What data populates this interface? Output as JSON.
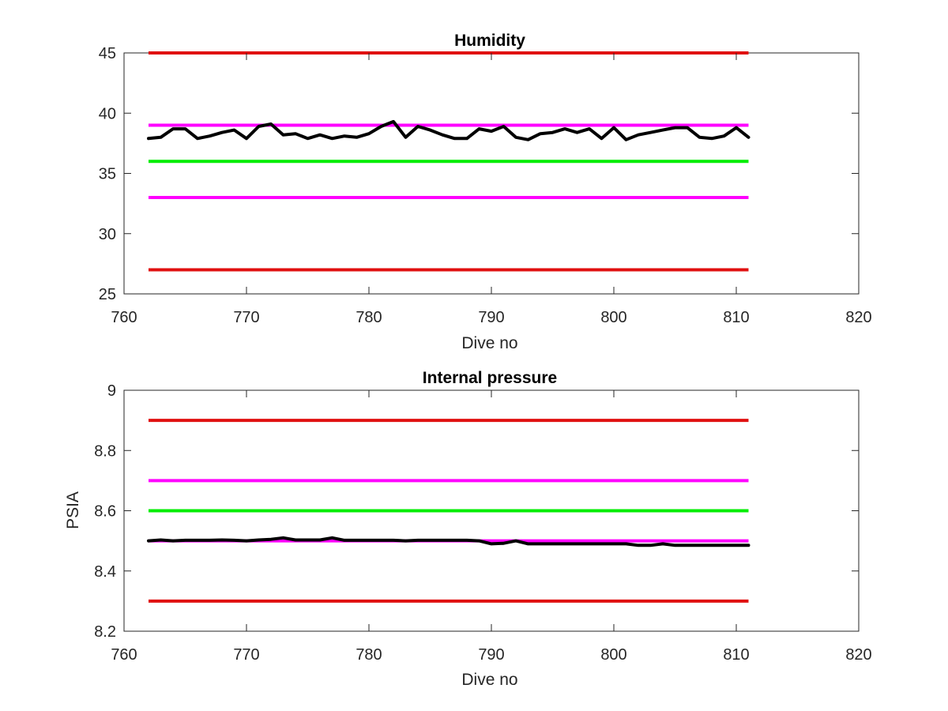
{
  "chart_data": [
    {
      "type": "line",
      "title": "Humidity",
      "xlabel": "Dive no",
      "ylabel": "",
      "xlim": [
        760,
        820
      ],
      "ylim": [
        25,
        45
      ],
      "xticks": [
        760,
        770,
        780,
        790,
        800,
        810,
        820
      ],
      "yticks": [
        25,
        30,
        35,
        40,
        45
      ],
      "xtick_labels": [
        "760",
        "770",
        "780",
        "790",
        "800",
        "810",
        "820"
      ],
      "ytick_labels": [
        "25",
        "30",
        "35",
        "40",
        "45"
      ],
      "grid": false,
      "reference_lines": [
        {
          "y": 45,
          "x_range": [
            762,
            811
          ],
          "color": "#e01010"
        },
        {
          "y": 39,
          "x_range": [
            762,
            811
          ],
          "color": "#ff00ff"
        },
        {
          "y": 36,
          "x_range": [
            762,
            811
          ],
          "color": "#00ee00"
        },
        {
          "y": 33,
          "x_range": [
            762,
            811
          ],
          "color": "#ff00ff"
        },
        {
          "y": 27,
          "x_range": [
            762,
            811
          ],
          "color": "#e01010"
        }
      ],
      "series": [
        {
          "color": "#000000",
          "x": [
            762,
            763,
            764,
            765,
            766,
            767,
            768,
            769,
            770,
            771,
            772,
            773,
            774,
            775,
            776,
            777,
            778,
            779,
            780,
            781,
            782,
            783,
            784,
            785,
            786,
            787,
            788,
            789,
            790,
            791,
            792,
            793,
            794,
            795,
            796,
            797,
            798,
            799,
            800,
            801,
            802,
            803,
            804,
            805,
            806,
            807,
            808,
            809,
            810,
            811
          ],
          "y": [
            37.9,
            38.0,
            38.7,
            38.7,
            37.9,
            38.1,
            38.4,
            38.6,
            37.9,
            38.9,
            39.1,
            38.2,
            38.3,
            37.9,
            38.2,
            37.9,
            38.1,
            38.0,
            38.3,
            38.9,
            39.3,
            38.0,
            38.9,
            38.6,
            38.2,
            37.9,
            37.9,
            38.7,
            38.5,
            38.9,
            38.0,
            37.8,
            38.3,
            38.4,
            38.7,
            38.4,
            38.7,
            37.9,
            38.8,
            37.8,
            38.2,
            38.4,
            38.6,
            38.8,
            38.8,
            38.0,
            37.9,
            38.1,
            38.8,
            38.0
          ]
        }
      ]
    },
    {
      "type": "line",
      "title": "Internal pressure",
      "xlabel": "Dive no",
      "ylabel": "PSIA",
      "xlim": [
        760,
        820
      ],
      "ylim": [
        8.2,
        9
      ],
      "xticks": [
        760,
        770,
        780,
        790,
        800,
        810,
        820
      ],
      "yticks": [
        8.2,
        8.4,
        8.6,
        8.8,
        9
      ],
      "xtick_labels": [
        "760",
        "770",
        "780",
        "790",
        "800",
        "810",
        "820"
      ],
      "ytick_labels": [
        "8.2",
        "8.4",
        "8.6",
        "8.8",
        "9"
      ],
      "grid": false,
      "reference_lines": [
        {
          "y": 8.9,
          "x_range": [
            762,
            811
          ],
          "color": "#e01010"
        },
        {
          "y": 8.7,
          "x_range": [
            762,
            811
          ],
          "color": "#ff00ff"
        },
        {
          "y": 8.6,
          "x_range": [
            762,
            811
          ],
          "color": "#00ee00"
        },
        {
          "y": 8.5,
          "x_range": [
            762,
            811
          ],
          "color": "#ff00ff"
        },
        {
          "y": 8.3,
          "x_range": [
            762,
            811
          ],
          "color": "#e01010"
        }
      ],
      "series": [
        {
          "color": "#000000",
          "x": [
            762,
            763,
            764,
            765,
            766,
            767,
            768,
            769,
            770,
            771,
            772,
            773,
            774,
            775,
            776,
            777,
            778,
            779,
            780,
            781,
            782,
            783,
            784,
            785,
            786,
            787,
            788,
            789,
            790,
            791,
            792,
            793,
            794,
            795,
            796,
            797,
            798,
            799,
            800,
            801,
            802,
            803,
            804,
            805,
            806,
            807,
            808,
            809,
            810,
            811
          ],
          "y": [
            8.5,
            8.503,
            8.5,
            8.502,
            8.502,
            8.502,
            8.503,
            8.502,
            8.5,
            8.503,
            8.505,
            8.51,
            8.503,
            8.503,
            8.503,
            8.51,
            8.502,
            8.502,
            8.502,
            8.502,
            8.502,
            8.5,
            8.502,
            8.502,
            8.502,
            8.502,
            8.502,
            8.5,
            8.49,
            8.492,
            8.5,
            8.49,
            8.49,
            8.49,
            8.49,
            8.49,
            8.49,
            8.49,
            8.49,
            8.49,
            8.485,
            8.485,
            8.49,
            8.485,
            8.485,
            8.485,
            8.485,
            8.485,
            8.485,
            8.485
          ]
        }
      ]
    }
  ]
}
